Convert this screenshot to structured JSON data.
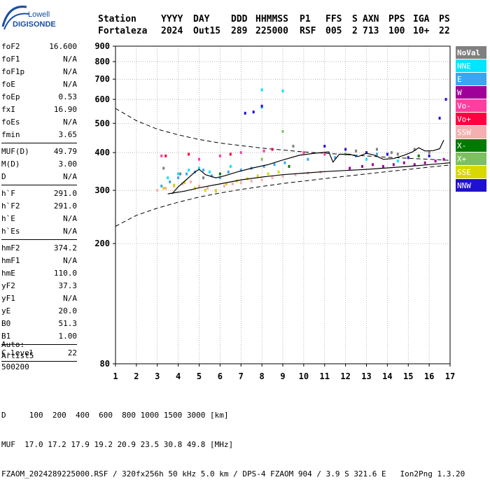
{
  "logo": {
    "line1": "Lowell",
    "line2": "DIGISONDE"
  },
  "header": {
    "labels": [
      "Station",
      "YYYY",
      "DAY",
      "DDD",
      "HHMMSS",
      "P1",
      "FFS",
      "S",
      "AXN",
      "PPS",
      "IGA",
      "PS"
    ],
    "values": [
      "Fortaleza",
      "2024",
      "Out15",
      "289",
      "225000",
      "RSF",
      "005",
      "2",
      "713",
      "100",
      "10+",
      "22"
    ]
  },
  "params": [
    {
      "k": "foF2",
      "v": "16.600"
    },
    {
      "k": "foF1",
      "v": "N/A"
    },
    {
      "k": "foF1p",
      "v": "N/A"
    },
    {
      "k": "foE",
      "v": "N/A"
    },
    {
      "k": "foEp",
      "v": "0.53"
    },
    {
      "k": "fxI",
      "v": "16.90"
    },
    {
      "k": "foEs",
      "v": "N/A"
    },
    {
      "k": "fmin",
      "v": "3.65"
    },
    {
      "sep": true
    },
    {
      "k": "MUF(D)",
      "v": "49.79"
    },
    {
      "k": "M(D)",
      "v": "3.00"
    },
    {
      "k": "D",
      "v": "N/A"
    },
    {
      "sep": true
    },
    {
      "k": "h`F",
      "v": "291.0"
    },
    {
      "k": "h`F2",
      "v": "291.0"
    },
    {
      "k": "h`E",
      "v": "N/A"
    },
    {
      "k": "h`Es",
      "v": "N/A"
    },
    {
      "sep": true
    },
    {
      "k": "hmF2",
      "v": "374.2"
    },
    {
      "k": "hmF1",
      "v": "N/A"
    },
    {
      "k": "hmE",
      "v": "110.0"
    },
    {
      "k": "yF2",
      "v": "37.3"
    },
    {
      "k": "yF1",
      "v": "N/A"
    },
    {
      "k": "yE",
      "v": "20.0"
    },
    {
      "k": "B0",
      "v": "51.3"
    },
    {
      "k": "B1",
      "v": "1.00"
    },
    {
      "sep": true
    },
    {
      "k": "C-level",
      "v": "22"
    },
    {
      "sep": true
    }
  ],
  "auto": {
    "line1": "Auto:",
    "line2": "Artist5",
    "line3": "500200"
  },
  "footer": {
    "line1": "D     100  200  400  600  800 1000 1500 3000 [km]",
    "line2": "MUF  17.0 17.2 17.9 19.2 20.9 23.5 30.8 49.8 [MHz]",
    "line3": "FZAOM_2024289225000.RSF / 320fx256h 50 kHz 5.0 km / DPS-4 FZAOM 904 / 3.9 S 321.6 E   Ion2Png 1.3.20"
  },
  "legend": [
    {
      "label": "NoVal",
      "color": "#808080",
      "text": "#ffffff"
    },
    {
      "label": "NNE",
      "color": "#00e5ff",
      "text": "#ffffff"
    },
    {
      "label": "E",
      "color": "#3aa6f0",
      "text": "#ffffff"
    },
    {
      "label": "W",
      "color": "#a0009a",
      "text": "#ffffff"
    },
    {
      "label": "Vo-",
      "color": "#ff3fa0",
      "text": "#ffffff"
    },
    {
      "label": "Vo+",
      "color": "#ff0040",
      "text": "#ffffff"
    },
    {
      "label": "SSW",
      "color": "#f4b0b0",
      "text": "#ffffff"
    },
    {
      "label": "X-",
      "color": "#007a00",
      "text": "#ffffff"
    },
    {
      "label": "X+",
      "color": "#7cc060",
      "text": "#ffffff"
    },
    {
      "label": "SSE",
      "color": "#d8d800",
      "text": "#ffffff"
    },
    {
      "label": "NNW",
      "color": "#2010d0",
      "text": "#ffffff"
    }
  ],
  "chart_data": {
    "type": "scatter",
    "xlim": [
      1,
      17
    ],
    "ylim": [
      80,
      900
    ],
    "x_ticks": [
      "1",
      "2",
      "3",
      "4",
      "5",
      "6",
      "7",
      "8",
      "9",
      "10",
      "11",
      "12",
      "13",
      "14",
      "15",
      "16",
      "17"
    ],
    "y_ticks": [
      "80",
      "200",
      "300",
      "400",
      "500",
      "600",
      "700",
      "800",
      "900"
    ],
    "y_scale": "log",
    "grid": true,
    "series": [
      {
        "name": "NNE",
        "points": [
          [
            3.5,
            330
          ],
          [
            4.0,
            340
          ],
          [
            4.5,
            350
          ],
          [
            5.0,
            355
          ],
          [
            5.5,
            345
          ],
          [
            6.5,
            360
          ],
          [
            8.0,
            645
          ],
          [
            9.0,
            640
          ],
          [
            8.0,
            565
          ],
          [
            13.0,
            380
          ],
          [
            14.5,
            375
          ]
        ]
      },
      {
        "name": "E",
        "points": [
          [
            3.2,
            310
          ],
          [
            3.6,
            320
          ],
          [
            4.0,
            330
          ],
          [
            4.4,
            340
          ],
          [
            4.8,
            345
          ],
          [
            5.2,
            350
          ],
          [
            5.6,
            335
          ],
          [
            6.0,
            330
          ],
          [
            6.4,
            345
          ],
          [
            7.0,
            350
          ],
          [
            7.5,
            355
          ],
          [
            8.1,
            360
          ],
          [
            8.6,
            365
          ],
          [
            9.1,
            370
          ],
          [
            10.2,
            380
          ],
          [
            11.5,
            385
          ],
          [
            12.5,
            390
          ],
          [
            13.5,
            395
          ]
        ]
      },
      {
        "name": "W",
        "points": [
          [
            12.2,
            355
          ],
          [
            12.8,
            360
          ],
          [
            13.3,
            365
          ],
          [
            13.8,
            360
          ],
          [
            14.3,
            365
          ],
          [
            14.8,
            370
          ],
          [
            15.3,
            365
          ],
          [
            15.8,
            370
          ],
          [
            16.3,
            375
          ],
          [
            16.7,
            380
          ]
        ]
      },
      {
        "name": "SSW",
        "points": [
          [
            3.0,
            300
          ],
          [
            3.4,
            305
          ],
          [
            3.8,
            310
          ],
          [
            4.2,
            315
          ],
          [
            4.6,
            320
          ],
          [
            5.0,
            310
          ],
          [
            5.4,
            305
          ],
          [
            5.8,
            300
          ],
          [
            6.2,
            310
          ],
          [
            6.6,
            315
          ],
          [
            7.0,
            318
          ],
          [
            7.5,
            322
          ],
          [
            8.0,
            325
          ],
          [
            8.5,
            330
          ],
          [
            9.0,
            334
          ],
          [
            9.6,
            338
          ],
          [
            10.2,
            342
          ],
          [
            10.8,
            345
          ]
        ]
      },
      {
        "name": "SSE",
        "points": [
          [
            3.3,
            305
          ],
          [
            3.8,
            312
          ],
          [
            4.3,
            318
          ],
          [
            4.8,
            305
          ],
          [
            5.3,
            300
          ],
          [
            5.8,
            298
          ],
          [
            6.3,
            315
          ],
          [
            6.8,
            322
          ],
          [
            7.3,
            328
          ],
          [
            7.8,
            335
          ],
          [
            8.3,
            340
          ],
          [
            8.8,
            345
          ]
        ]
      },
      {
        "name": "NNW",
        "points": [
          [
            7.2,
            540
          ],
          [
            7.6,
            545
          ],
          [
            8.0,
            570
          ],
          [
            11.0,
            420
          ],
          [
            12.0,
            410
          ],
          [
            13.0,
            400
          ],
          [
            14.0,
            395
          ],
          [
            15.0,
            385
          ],
          [
            16.0,
            390
          ],
          [
            16.5,
            520
          ],
          [
            16.8,
            600
          ]
        ]
      },
      {
        "name": "Vo-",
        "points": [
          [
            3.2,
            390
          ],
          [
            5.0,
            380
          ],
          [
            6.0,
            390
          ],
          [
            7.0,
            400
          ],
          [
            8.1,
            405
          ],
          [
            10.0,
            400
          ],
          [
            11.0,
            395
          ]
        ]
      },
      {
        "name": "Vo+",
        "points": [
          [
            3.4,
            390
          ],
          [
            4.5,
            395
          ],
          [
            6.5,
            395
          ],
          [
            8.5,
            410
          ]
        ]
      },
      {
        "name": "NoVal",
        "points": [
          [
            3.3,
            355
          ],
          [
            4.1,
            340
          ],
          [
            5.2,
            330
          ],
          [
            9.5,
            420
          ],
          [
            12.5,
            405
          ],
          [
            13.5,
            410
          ],
          [
            14.2,
            400
          ],
          [
            14.5,
            395
          ],
          [
            15.3,
            410
          ],
          [
            16.0,
            400
          ]
        ]
      },
      {
        "name": "X+",
        "points": [
          [
            8.0,
            380
          ],
          [
            9.0,
            470
          ],
          [
            12.0,
            395
          ]
        ]
      },
      {
        "name": "X-",
        "points": [
          [
            6.0,
            340
          ],
          [
            9.3,
            360
          ],
          [
            15.5,
            390
          ]
        ]
      }
    ],
    "lines": {
      "trace_upper": [
        [
          3.7,
          292
        ],
        [
          4.0,
          308
        ],
        [
          4.4,
          326
        ],
        [
          4.8,
          345
        ],
        [
          5.0,
          352
        ],
        [
          5.3,
          338
        ],
        [
          5.8,
          330
        ],
        [
          6.2,
          335
        ],
        [
          6.8,
          345
        ],
        [
          7.5,
          355
        ],
        [
          8.3,
          365
        ],
        [
          9.0,
          378
        ],
        [
          9.8,
          392
        ],
        [
          10.5,
          398
        ],
        [
          11.2,
          402
        ],
        [
          11.4,
          372
        ],
        [
          11.7,
          395
        ],
        [
          12.2,
          395
        ],
        [
          12.6,
          388
        ],
        [
          13.0,
          398
        ],
        [
          13.4,
          392
        ],
        [
          13.8,
          380
        ],
        [
          14.3,
          382
        ],
        [
          14.8,
          392
        ],
        [
          15.2,
          402
        ],
        [
          15.5,
          415
        ],
        [
          15.8,
          405
        ],
        [
          16.2,
          406
        ],
        [
          16.5,
          412
        ],
        [
          16.7,
          440
        ]
      ],
      "trace_lower": [
        [
          3.5,
          292
        ],
        [
          4.3,
          298
        ],
        [
          5.0,
          306
        ],
        [
          6.0,
          315
        ],
        [
          7.0,
          325
        ],
        [
          8.0,
          332
        ],
        [
          9.0,
          338
        ],
        [
          10.0,
          342
        ],
        [
          11.0,
          346
        ],
        [
          12.0,
          349
        ],
        [
          13.0,
          352
        ],
        [
          14.0,
          356
        ],
        [
          15.0,
          360
        ],
        [
          16.0,
          365
        ],
        [
          17.0,
          370
        ]
      ],
      "dashed_upper": [
        [
          1.0,
          560
        ],
        [
          2.0,
          510
        ],
        [
          3.0,
          478
        ],
        [
          4.0,
          458
        ],
        [
          5.0,
          442
        ],
        [
          6.0,
          430
        ],
        [
          7.0,
          422
        ],
        [
          8.0,
          414
        ],
        [
          9.0,
          408
        ],
        [
          10.0,
          402
        ],
        [
          11.0,
          398
        ],
        [
          12.0,
          394
        ],
        [
          13.0,
          390
        ],
        [
          14.0,
          386
        ],
        [
          15.0,
          383
        ],
        [
          16.0,
          380
        ],
        [
          17.0,
          377
        ]
      ],
      "dashed_lower": [
        [
          1.0,
          228
        ],
        [
          2.0,
          248
        ],
        [
          3.0,
          262
        ],
        [
          4.0,
          274
        ],
        [
          5.0,
          285
        ],
        [
          6.0,
          294
        ],
        [
          7.0,
          302
        ],
        [
          8.0,
          309
        ],
        [
          9.0,
          316
        ],
        [
          10.0,
          322
        ],
        [
          11.0,
          328
        ],
        [
          12.0,
          334
        ],
        [
          13.0,
          340
        ],
        [
          14.0,
          346
        ],
        [
          15.0,
          352
        ],
        [
          16.0,
          358
        ],
        [
          17.0,
          364
        ]
      ]
    }
  }
}
